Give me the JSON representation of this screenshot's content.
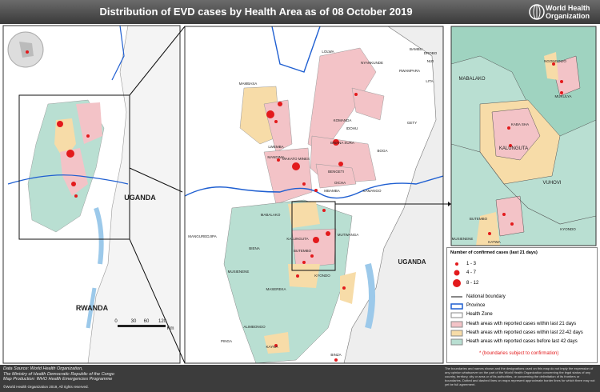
{
  "header": {
    "title": "Distribution of EVD cases by Health Area as of 08 October 2019",
    "org": "World Health Organization"
  },
  "left_map": {
    "labels": [
      "UGANDA",
      "RWANDA"
    ],
    "scale": [
      "0",
      "30",
      "60",
      "120",
      "Km"
    ]
  },
  "middle_map": {
    "labels": [
      "BAMBU",
      "LOLWA",
      "RWAMPARA",
      "NYANKUNDE",
      "DROBO",
      "NIZI",
      "LITA",
      "GETY",
      "BOGA",
      "MAMBASA",
      "KOMANDA",
      "IDOHU",
      "BWANA SURA",
      "MANDIMA",
      "MAKATO MINES",
      "LWEMBA",
      "BENGETI",
      "KAMANGO",
      "OICHA",
      "MBAMBA",
      "KALUNGUTA",
      "MABALAKO",
      "BUTEMBO",
      "MUTWANGA",
      "MANGUREDJIPA",
      "BIENA",
      "MUSIENENE",
      "KYONDO",
      "MASEREKA",
      "ALIMBONGO",
      "PINGA",
      "KAYNA",
      "BINZA",
      "UGANDA"
    ]
  },
  "right_map": {
    "labels": [
      "MABALAKO",
      "NGONGOLIO",
      "MUKULYA",
      "KABA SHA",
      "KALUNGUTA",
      "VUHOVI",
      "BUTEMBO",
      "KATWA",
      "KYONDO",
      "MUSIENENE"
    ]
  },
  "legend": {
    "title": "Number of confirmed cases (last 21 days)",
    "sizes": [
      "1 - 3",
      "4 - 7",
      "8 - 12"
    ],
    "lines": [
      "National boundary",
      "Province",
      "Health Zone"
    ],
    "areas": [
      "Heath areas with reported cases within last 21 days",
      "Heath areas with reported cases within last 22-42 days",
      "Heath areas with reported cases before last 42 days"
    ],
    "note": "* (boundaries subject to confirmation)"
  },
  "footer": {
    "lines": [
      "Data Source: World Health Organization,",
      "The Ministry of Health Democratic Republic of the Congo",
      "Map Production: WHO Health Emergencies Programme"
    ],
    "copyright": "©World Health Organization 2019, All rights reserved.",
    "disclaimer": "The boundaries and names shown and the designations used on this map do not imply the expression of any opinion whatsoever on the part of the World Health Organization concerning the legal status of any country, territory, city or area or of its authorities, or concerning the delimitation of its frontiers or boundaries. Dotted and dashed lines on maps represent approximate border lines for which there may not yet be full agreement."
  }
}
